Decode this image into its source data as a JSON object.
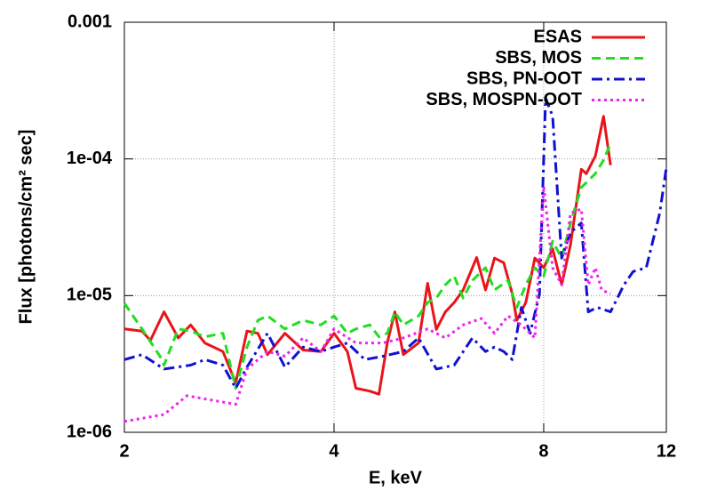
{
  "chart_data": {
    "type": "line",
    "x_label": "E, keV",
    "y_label": "Flux [photons/cm² sec]",
    "xlim": [
      2,
      12
    ],
    "xticks": [
      2,
      4,
      8,
      12
    ],
    "x_scale": "log",
    "ylim": [
      1e-06,
      0.001
    ],
    "y_scale": "log",
    "yticks": [
      {
        "value": 1e-06,
        "label": "1e-06"
      },
      {
        "value": 1e-05,
        "label": "1e-05"
      },
      {
        "value": 0.0001,
        "label": "1e-04"
      },
      0.001
    ],
    "grid": true,
    "legend": "top-right",
    "series": [
      {
        "name": "ESAS",
        "color": "#e8141a",
        "dash": "solid",
        "x": [
          2.0,
          2.12,
          2.18,
          2.28,
          2.39,
          2.49,
          2.61,
          2.77,
          2.89,
          3.0,
          3.11,
          3.21,
          3.4,
          3.61,
          3.83,
          4.0,
          4.18,
          4.3,
          4.5,
          4.64,
          4.77,
          4.89,
          5.03,
          5.29,
          5.45,
          5.61,
          5.78,
          5.95,
          6.13,
          6.41,
          6.6,
          6.8,
          7.01,
          7.21,
          7.32,
          7.54,
          7.77,
          8.0,
          8.24,
          8.49,
          8.74,
          9.06,
          9.21,
          9.49,
          9.75,
          9.98
        ],
        "values": [
          5.7e-06,
          5.5e-06,
          4.7e-06,
          7.6e-06,
          4.9e-06,
          6.1e-06,
          4.5e-06,
          3.9e-06,
          2.3e-06,
          5.5e-06,
          5.3e-06,
          3.7e-06,
          5.3e-06,
          4e-06,
          3.9e-06,
          5.3e-06,
          3.9e-06,
          2.1e-06,
          2e-06,
          1.9e-06,
          4.5e-06,
          7.6e-06,
          3.7e-06,
          4.5e-06,
          1.23e-05,
          5.66e-06,
          7.6e-06,
          8.9e-06,
          1.1e-05,
          1.9e-05,
          1.1e-05,
          1.88e-05,
          1.74e-05,
          1.03e-05,
          6.6e-06,
          8.9e-06,
          1.88e-05,
          1.6e-05,
          2.2e-05,
          1.2e-05,
          2.35e-05,
          8.4e-05,
          7.8e-05,
          0.000105,
          0.000205,
          9e-05
        ]
      },
      {
        "name": "SBS, MOS",
        "color": "#22dd22",
        "dash": "dashed",
        "x": [
          2.0,
          2.12,
          2.25,
          2.28,
          2.39,
          2.49,
          2.61,
          2.77,
          2.89,
          3.0,
          3.11,
          3.21,
          3.4,
          3.61,
          3.83,
          4.0,
          4.18,
          4.3,
          4.5,
          4.64,
          4.77,
          4.89,
          5.03,
          5.29,
          5.45,
          5.61,
          5.78,
          5.95,
          6.13,
          6.32,
          6.6,
          6.8,
          7.11,
          7.32,
          7.54,
          7.77,
          8.0,
          8.24,
          8.49,
          8.74,
          9.06,
          9.21,
          9.49,
          9.75,
          9.98
        ],
        "values": [
          8.8e-06,
          5.7e-06,
          3.6e-06,
          3.1e-06,
          5.7e-06,
          5.5e-06,
          5e-06,
          5.3e-06,
          2.1e-06,
          4.2e-06,
          6.6e-06,
          7.1e-06,
          5.7e-06,
          6.6e-06,
          6.1e-06,
          7.1e-06,
          5.3e-06,
          5.7e-06,
          6.1e-06,
          5e-06,
          5.3e-06,
          7.6e-06,
          6.1e-06,
          7.1e-06,
          8.9e-06,
          9.6e-06,
          1.2e-05,
          1.39e-05,
          9.6e-06,
          1.29e-05,
          1.6e-05,
          1.1e-05,
          1.29e-05,
          8.2e-06,
          1.2e-05,
          1.6e-05,
          1.39e-05,
          2.5e-05,
          1.88e-05,
          3.4e-05,
          6.2e-05,
          6.7e-05,
          7.8e-05,
          9.8e-05,
          0.00013
        ]
      },
      {
        "name": "SBS, PN-OOT",
        "color": "#1010d0",
        "dash": "dashdot",
        "x": [
          2.0,
          2.12,
          2.28,
          2.49,
          2.61,
          2.77,
          2.89,
          3.0,
          3.21,
          3.4,
          3.61,
          3.83,
          4.0,
          4.18,
          4.43,
          4.7,
          5.03,
          5.29,
          5.61,
          5.95,
          6.32,
          6.6,
          6.8,
          7.01,
          7.21,
          7.43,
          7.65,
          7.89,
          8.05,
          8.24,
          8.49,
          8.74,
          9.06,
          9.27,
          9.55,
          9.98,
          10.43,
          10.75,
          11.23,
          11.74,
          12.0
        ],
        "values": [
          3.4e-06,
          3.7e-06,
          2.9e-06,
          3.1e-06,
          3.4e-06,
          3.1e-06,
          2.1e-06,
          3e-06,
          5.3e-06,
          3e-06,
          4.2e-06,
          3.9e-06,
          4.2e-06,
          4.5e-06,
          3.4e-06,
          3.6e-06,
          3.9e-06,
          4.9e-06,
          2.9e-06,
          3.1e-06,
          4.9e-06,
          3.9e-06,
          4.2e-06,
          3.9e-06,
          3.4e-06,
          8.2e-06,
          5.3e-06,
          1.03e-05,
          0.00028,
          0.000205,
          1.88e-05,
          2.9e-05,
          3.4e-05,
          7.6e-06,
          8.2e-06,
          7.6e-06,
          1.2e-05,
          1.5e-05,
          1.6e-05,
          4e-05,
          8.6e-05
        ]
      },
      {
        "name": "SBS, MOSPN-OOT",
        "color": "#ee22ee",
        "dash": "dotted",
        "x": [
          2.0,
          2.28,
          2.46,
          2.89,
          3.0,
          3.21,
          3.4,
          3.61,
          3.83,
          4.0,
          4.3,
          4.7,
          5.03,
          5.45,
          5.78,
          6.13,
          6.51,
          6.8,
          7.11,
          7.43,
          7.77,
          8.0,
          8.24,
          8.49,
          8.74,
          9.06,
          9.27,
          9.49,
          9.69,
          9.98
        ],
        "values": [
          1.2e-06,
          1.35e-06,
          1.85e-06,
          1.6e-06,
          2.9e-06,
          3.9e-06,
          3.6e-06,
          4.9e-06,
          3.9e-06,
          5.7e-06,
          4.5e-06,
          4.5e-06,
          4.9e-06,
          5.7e-06,
          4.9e-06,
          6.1e-06,
          6.8e-06,
          5.3e-06,
          7.1e-06,
          6.1e-06,
          4.9e-06,
          6.3e-05,
          1.6e-05,
          1.2e-05,
          4e-05,
          4.3e-05,
          1.2e-05,
          1.6e-05,
          1.1e-05,
          1.03e-05
        ]
      }
    ]
  }
}
